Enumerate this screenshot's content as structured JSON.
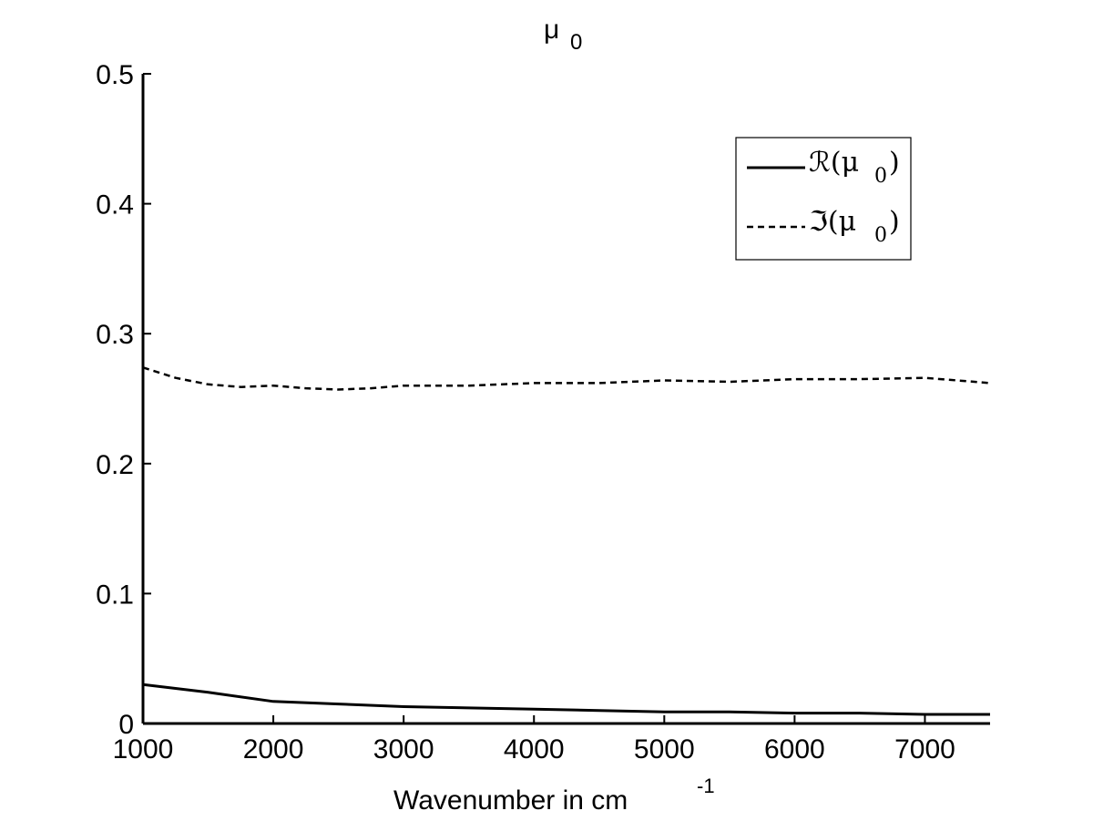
{
  "chart_data": {
    "type": "line",
    "title": "μ",
    "title_sub": "0",
    "xlabel": "Wavenumber in cm",
    "xlabel_sup": "-1",
    "ylabel": "",
    "xlim": [
      1000,
      7500
    ],
    "ylim": [
      0,
      0.5
    ],
    "xticks": [
      1000,
      2000,
      3000,
      4000,
      5000,
      6000,
      7000
    ],
    "xtick_labels": [
      "1000",
      "2000",
      "3000",
      "4000",
      "5000",
      "6000",
      "7000"
    ],
    "yticks": [
      0,
      0.1,
      0.2,
      0.3,
      0.4,
      0.5
    ],
    "ytick_labels": [
      "0",
      "0.1",
      "0.2",
      "0.3",
      "0.4",
      "0.5"
    ],
    "grid": false,
    "legend_position": "top-right",
    "series": [
      {
        "name": "ℛ(μ",
        "name_sub": "0",
        "name_suffix": ")",
        "style": "solid",
        "color": "#000000",
        "x": [
          1000,
          1500,
          2000,
          2500,
          3000,
          3500,
          4000,
          4500,
          5000,
          5500,
          6000,
          6500,
          7000,
          7500
        ],
        "y": [
          0.03,
          0.024,
          0.017,
          0.015,
          0.013,
          0.012,
          0.011,
          0.01,
          0.009,
          0.009,
          0.008,
          0.008,
          0.007,
          0.007
        ]
      },
      {
        "name": "ℑ(μ",
        "name_sub": "0",
        "name_suffix": ")",
        "style": "dashed",
        "color": "#000000",
        "x": [
          1000,
          1250,
          1500,
          1750,
          2000,
          2250,
          2500,
          2750,
          3000,
          3500,
          4000,
          4500,
          5000,
          5500,
          6000,
          6500,
          7000,
          7250,
          7500
        ],
        "y": [
          0.274,
          0.266,
          0.261,
          0.259,
          0.26,
          0.258,
          0.257,
          0.258,
          0.26,
          0.26,
          0.262,
          0.262,
          0.264,
          0.263,
          0.265,
          0.265,
          0.266,
          0.264,
          0.262
        ]
      }
    ]
  }
}
